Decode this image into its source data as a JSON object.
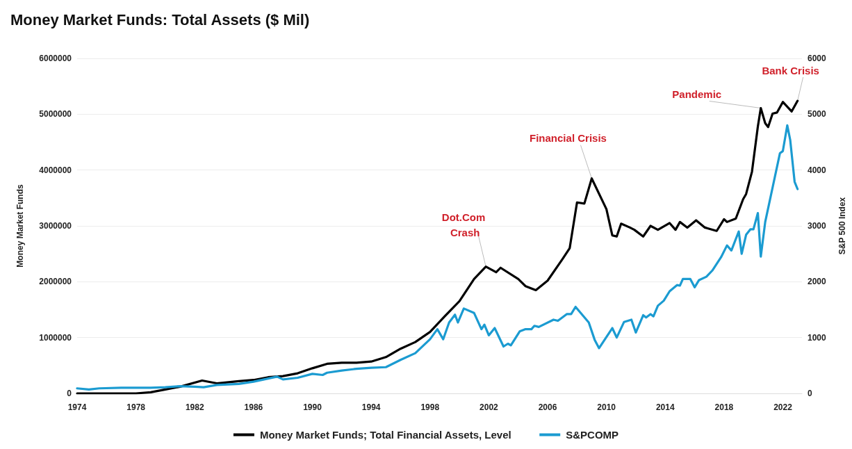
{
  "chart_data": {
    "type": "line",
    "title": "Money Market Funds: Total Assets ($ Mil)",
    "ylabel": "Money Market Funds",
    "y2label": "S&P 500 Index",
    "xlim": [
      1974,
      2023.3
    ],
    "xticks": [
      1974,
      1978,
      1982,
      1986,
      1990,
      1994,
      1998,
      2002,
      2006,
      2010,
      2014,
      2018,
      2022
    ],
    "ylim": [
      0,
      6000000
    ],
    "yticks": [
      0,
      1000000,
      2000000,
      3000000,
      4000000,
      5000000,
      6000000
    ],
    "y2lim": [
      0,
      6000
    ],
    "y2ticks": [
      0,
      1000,
      2000,
      3000,
      4000,
      5000,
      6000
    ],
    "grid": "y",
    "legend": "bottom",
    "marker": "none",
    "line_style": "solid",
    "annotations": [
      {
        "text": "Dot.Com Crash",
        "x": 2001.8,
        "y": 2270000
      },
      {
        "text": "Financial Crisis",
        "x": 2009.0,
        "y": 3850000
      },
      {
        "text": "Pandemic",
        "x": 2020.5,
        "y": 5110000
      },
      {
        "text": "Bank Crisis",
        "x": 2023.0,
        "y": 5240000
      }
    ],
    "series": [
      {
        "name": "Money Market Funds; Total Financial Assets, Level",
        "color": "#000000",
        "x": [
          1974,
          1978,
          1979,
          1980,
          1981,
          1982.5,
          1983.5,
          1985,
          1986,
          1987,
          1988,
          1989,
          1990,
          1991,
          1992,
          1993,
          1994,
          1995,
          1996,
          1997,
          1998,
          1999,
          2000,
          2001,
          2001.8,
          2002.5,
          2002.8,
          2004,
          2004.5,
          2005.2,
          2006,
          2007,
          2007.5,
          2008,
          2008.5,
          2009.0,
          2010.0,
          2010.4,
          2010.7,
          2011.0,
          2011.6,
          2011.9,
          2012.5,
          2013.0,
          2013.5,
          2014.3,
          2014.7,
          2015.0,
          2015.5,
          2016.1,
          2016.7,
          2017.5,
          2018.0,
          2018.2,
          2018.8,
          2019.3,
          2019.5,
          2019.9,
          2020.3,
          2020.5,
          2020.8,
          2021.0,
          2021.3,
          2021.6,
          2022.0,
          2022.6,
          2023.0
        ],
        "values": [
          0,
          0,
          20000,
          70000,
          120000,
          230000,
          180000,
          220000,
          240000,
          290000,
          310000,
          360000,
          450000,
          530000,
          550000,
          550000,
          570000,
          650000,
          800000,
          920000,
          1100000,
          1380000,
          1650000,
          2050000,
          2270000,
          2170000,
          2250000,
          2050000,
          1920000,
          1850000,
          2020000,
          2400000,
          2600000,
          3420000,
          3400000,
          3850000,
          3300000,
          2830000,
          2810000,
          3040000,
          2970000,
          2930000,
          2810000,
          3000000,
          2930000,
          3050000,
          2930000,
          3070000,
          2970000,
          3100000,
          2970000,
          2910000,
          3120000,
          3070000,
          3130000,
          3480000,
          3570000,
          3970000,
          4780000,
          5110000,
          4840000,
          4770000,
          5010000,
          5030000,
          5220000,
          5050000,
          5240000
        ]
      },
      {
        "name": "S&PCOMP",
        "color": "#1b9bd1",
        "axis": "y2",
        "x": [
          1974,
          1974.8,
          1975.5,
          1977,
          1978,
          1979,
          1980,
          1981,
          1982,
          1982.6,
          1983.5,
          1985,
          1986,
          1987.6,
          1988,
          1989,
          1990,
          1990.7,
          1991,
          1992,
          1993,
          1994,
          1995,
          1996,
          1997,
          1998,
          1998.5,
          1998.9,
          1999.3,
          1999.7,
          1999.9,
          2000.3,
          2001.0,
          2001.5,
          2001.7,
          2002.0,
          2002.4,
          2003.0,
          2003.3,
          2003.5,
          2004.1,
          2004.5,
          2004.9,
          2005.1,
          2005.4,
          2006.4,
          2006.7,
          2007.3,
          2007.6,
          2007.9,
          2008.8,
          2009.2,
          2009.5,
          2010.4,
          2010.7,
          2011.2,
          2011.7,
          2012.0,
          2012.5,
          2012.7,
          2013.0,
          2013.2,
          2013.5,
          2013.9,
          2014.3,
          2014.8,
          2015.0,
          2015.2,
          2015.7,
          2016.0,
          2016.3,
          2016.8,
          2017.2,
          2017.8,
          2018.2,
          2018.5,
          2019.0,
          2019.2,
          2019.5,
          2019.8,
          2020.0,
          2020.3,
          2020.5,
          2020.8,
          2021.8,
          2022.0,
          2022.3,
          2022.5,
          2022.8,
          2023.0
        ],
        "values": [
          90,
          70,
          90,
          100,
          100,
          100,
          110,
          130,
          120,
          110,
          150,
          170,
          210,
          300,
          250,
          280,
          350,
          330,
          370,
          410,
          440,
          460,
          470,
          600,
          720,
          970,
          1150,
          970,
          1270,
          1410,
          1270,
          1520,
          1440,
          1150,
          1230,
          1040,
          1170,
          840,
          890,
          860,
          1110,
          1150,
          1150,
          1210,
          1190,
          1320,
          1300,
          1420,
          1420,
          1550,
          1270,
          960,
          810,
          1170,
          1000,
          1280,
          1320,
          1090,
          1400,
          1360,
          1420,
          1380,
          1570,
          1660,
          1830,
          1940,
          1930,
          2050,
          2050,
          1900,
          2030,
          2090,
          2200,
          2440,
          2650,
          2560,
          2900,
          2500,
          2840,
          2940,
          2940,
          3230,
          2450,
          3070,
          4300,
          4340,
          4800,
          4540,
          3790,
          3660
        ]
      }
    ]
  }
}
